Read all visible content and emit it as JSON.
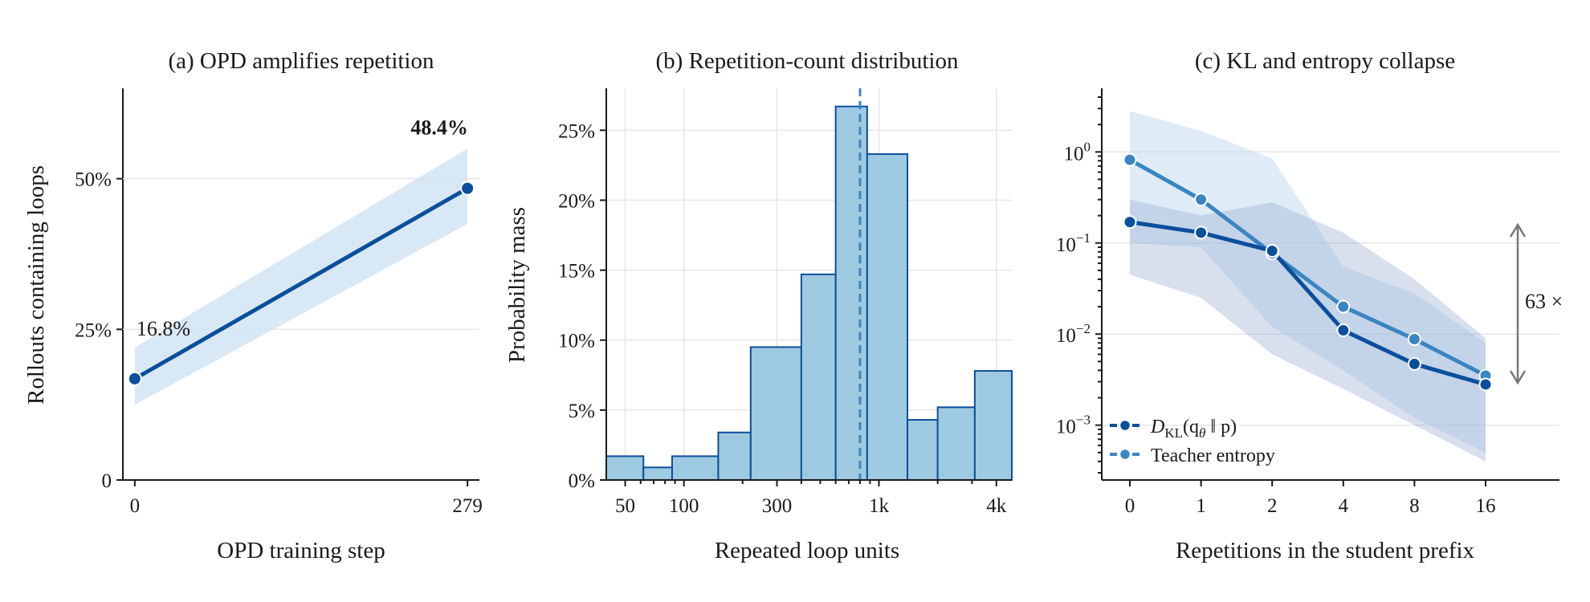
{
  "colors": {
    "dark": "#0b4f9c",
    "mid": "#3a85c2",
    "band": "#cfe2f3",
    "bar": "#9ecae1",
    "barEdge": "#0d4f9b",
    "arrow": "#777777",
    "grid": "#e6e6e6"
  },
  "chart_data": [
    {
      "type": "line",
      "title": "(a) OPD amplifies repetition",
      "xlabel": "OPD training step",
      "ylabel": "Rollouts containing loops",
      "x": [
        0,
        279
      ],
      "values": [
        16.8,
        48.4
      ],
      "band_low": [
        12.5,
        42.5
      ],
      "band_high": [
        22.0,
        55.0
      ],
      "xlim": [
        -10,
        289
      ],
      "ylim": [
        0,
        65
      ],
      "xticks": [
        0,
        279
      ],
      "xtick_labels": [
        "0",
        "279"
      ],
      "yticks": [
        0,
        25,
        50
      ],
      "ytick_labels": [
        "0",
        "25%",
        "50%"
      ],
      "grid": "horizontal",
      "annotations": {
        "start": "16.8%",
        "end": "48.4%"
      }
    },
    {
      "type": "bar",
      "subtype": "histogram",
      "title": "(b) Repetition-count distribution",
      "xlabel": "Repeated loop units",
      "ylabel": "Probability mass",
      "x_scale": "log",
      "bin_edges": [
        40,
        62,
        87,
        150,
        220,
        400,
        600,
        870,
        1400,
        2000,
        3100,
        4800
      ],
      "values": [
        1.7,
        0.9,
        1.7,
        3.4,
        9.5,
        14.7,
        26.7,
        23.3,
        4.3,
        5.2,
        7.8
      ],
      "median_line": 800,
      "xlim": [
        40,
        4800
      ],
      "ylim": [
        0,
        28
      ],
      "xticks": [
        50,
        100,
        300,
        1000,
        4000
      ],
      "xtick_labels": [
        "50",
        "100",
        "300",
        "1k",
        "4k"
      ],
      "yticks": [
        0,
        5,
        10,
        15,
        20,
        25
      ],
      "ytick_labels": [
        "0%",
        "5%",
        "10%",
        "15%",
        "20%",
        "25%"
      ],
      "grid": "both"
    },
    {
      "type": "line",
      "title": "(c) KL and entropy collapse",
      "xlabel": "Repetitions in the student prefix",
      "y_scale": "log",
      "categories": [
        "0",
        "1",
        "2",
        "4",
        "8",
        "16"
      ],
      "ylim": [
        0.00025,
        5
      ],
      "yticks": [
        0.001,
        0.01,
        0.1,
        1
      ],
      "ytick_base": "10",
      "ytick_exponents": [
        "−3",
        "−2",
        "−1",
        "0"
      ],
      "series": [
        {
          "name_prefix": "D",
          "name_sub": "KL",
          "name_rest": "(q",
          "name_sub2": "θ",
          "name_end": " ‖ p)",
          "values": [
            0.17,
            0.13,
            0.082,
            0.011,
            0.0047,
            0.0028
          ],
          "band_low": [
            0.045,
            0.025,
            0.006,
            0.0025,
            0.001,
            0.0004
          ],
          "band_high": [
            0.3,
            0.2,
            0.28,
            0.13,
            0.04,
            0.009
          ]
        },
        {
          "name": "Teacher entropy",
          "values": [
            0.82,
            0.3,
            0.077,
            0.02,
            0.0088,
            0.0035
          ],
          "band_low": [
            0.1,
            0.09,
            0.012,
            0.004,
            0.0012,
            0.0005
          ],
          "band_high": [
            2.8,
            1.7,
            0.85,
            0.055,
            0.028,
            0.008
          ]
        }
      ],
      "annotation": "63 ×",
      "legend_position": "lower-left",
      "grid": "horizontal"
    }
  ]
}
